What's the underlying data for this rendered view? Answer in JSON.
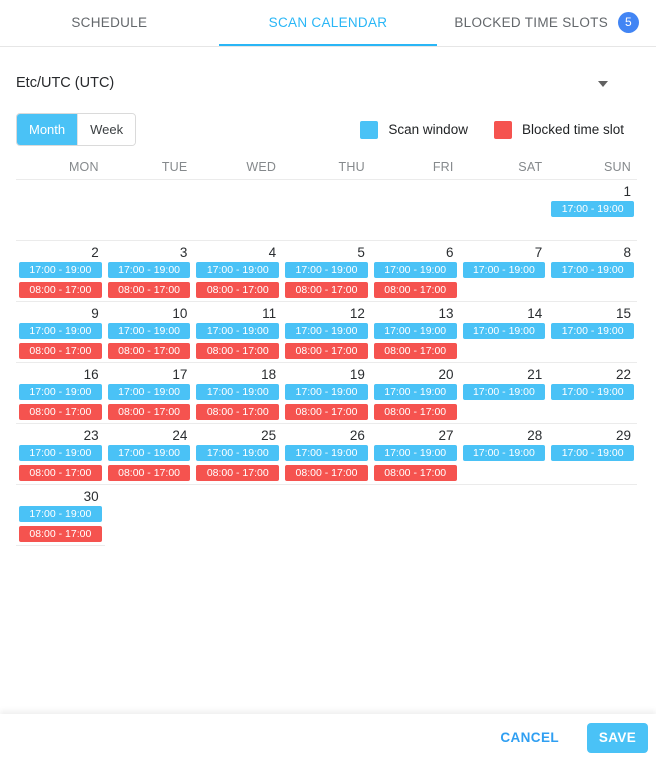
{
  "tabs": [
    {
      "label": "SCHEDULE",
      "active": false
    },
    {
      "label": "SCAN CALENDAR",
      "active": true
    },
    {
      "label": "BLOCKED TIME SLOTS",
      "active": false,
      "badge": "5"
    }
  ],
  "timezone": {
    "value": "Etc/UTC (UTC)"
  },
  "view_toggle": {
    "month_label": "Month",
    "week_label": "Week",
    "active": "Month"
  },
  "legend": [
    {
      "label": "Scan window",
      "color": "#4ac2f6"
    },
    {
      "label": "Blocked time slot",
      "color": "#f5534f"
    }
  ],
  "calendar": {
    "day_headers": [
      "MON",
      "TUE",
      "WED",
      "THU",
      "FRI",
      "SAT",
      "SUN"
    ],
    "scan_window_label": "17:00 - 19:00",
    "blocked_label": "08:00 - 17:00",
    "weeks": [
      [
        {},
        {},
        {},
        {},
        {},
        {},
        {
          "date": 1,
          "scan": true
        }
      ],
      [
        {
          "date": 2,
          "scan": true,
          "blocked": true
        },
        {
          "date": 3,
          "scan": true,
          "blocked": true
        },
        {
          "date": 4,
          "scan": true,
          "blocked": true
        },
        {
          "date": 5,
          "scan": true,
          "blocked": true
        },
        {
          "date": 6,
          "scan": true,
          "blocked": true
        },
        {
          "date": 7,
          "scan": true
        },
        {
          "date": 8,
          "scan": true
        }
      ],
      [
        {
          "date": 9,
          "scan": true,
          "blocked": true
        },
        {
          "date": 10,
          "scan": true,
          "blocked": true
        },
        {
          "date": 11,
          "scan": true,
          "blocked": true
        },
        {
          "date": 12,
          "scan": true,
          "blocked": true
        },
        {
          "date": 13,
          "scan": true,
          "blocked": true
        },
        {
          "date": 14,
          "scan": true
        },
        {
          "date": 15,
          "scan": true
        }
      ],
      [
        {
          "date": 16,
          "scan": true,
          "blocked": true
        },
        {
          "date": 17,
          "scan": true,
          "blocked": true
        },
        {
          "date": 18,
          "scan": true,
          "blocked": true
        },
        {
          "date": 19,
          "scan": true,
          "blocked": true
        },
        {
          "date": 20,
          "scan": true,
          "blocked": true
        },
        {
          "date": 21,
          "scan": true
        },
        {
          "date": 22,
          "scan": true
        }
      ],
      [
        {
          "date": 23,
          "scan": true,
          "blocked": true
        },
        {
          "date": 24,
          "scan": true,
          "blocked": true
        },
        {
          "date": 25,
          "scan": true,
          "blocked": true
        },
        {
          "date": 26,
          "scan": true,
          "blocked": true
        },
        {
          "date": 27,
          "scan": true,
          "blocked": true
        },
        {
          "date": 28,
          "scan": true
        },
        {
          "date": 29,
          "scan": true
        }
      ],
      [
        {
          "date": 30,
          "scan": true,
          "blocked": true
        },
        {},
        {},
        {},
        {},
        {},
        {}
      ]
    ]
  },
  "footer": {
    "cancel_label": "CANCEL",
    "save_label": "SAVE"
  },
  "colors": {
    "scan_window": "#4ac2f6",
    "blocked": "#f5534f",
    "accent": "#29b6f6",
    "badge": "#4285f4"
  }
}
